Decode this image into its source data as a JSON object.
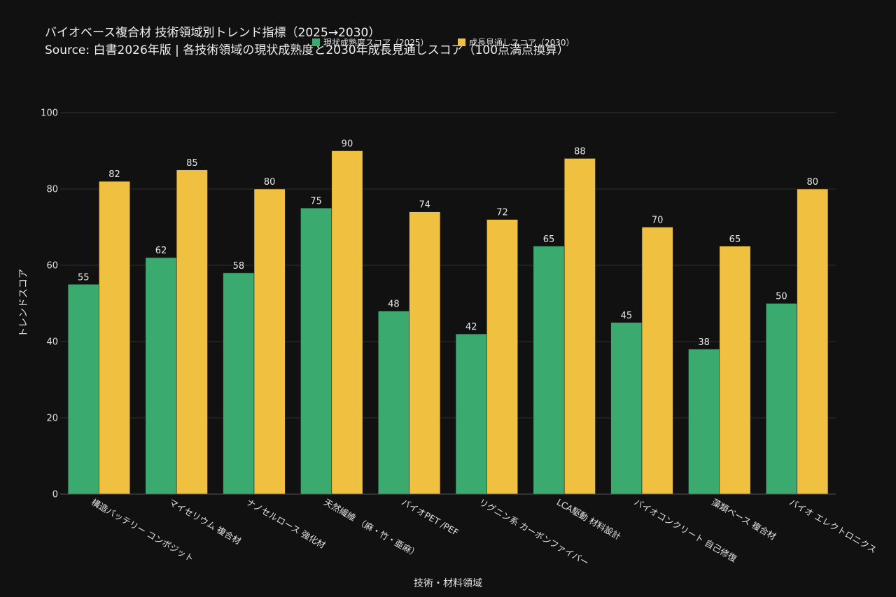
{
  "chart_data": {
    "type": "bar",
    "title": "バイオベース複合材 技術領域別トレンド指標（2025→2030）",
    "subtitle": "Source: 白書2026年版 | 各技術領域の現状成熟度と2030年成長見通しスコア（100点満点換算）",
    "xlabel": "技術・材料領域",
    "ylabel": "トレンドスコア",
    "ylim": [
      0,
      100
    ],
    "yticks": [
      0,
      20,
      40,
      60,
      80,
      100
    ],
    "grid": true,
    "legend_position": "top",
    "categories": [
      "構造バッテリー コンポジット",
      "マイセリウム 複合材",
      "ナノセルロース 強化材",
      "天然繊維 （麻・竹・亜麻）",
      "バイオPET /PEF",
      "リグニン系 カーボンファイバー",
      "LCA駆動 材料設計",
      "バイオコンクリート 自己修復",
      "藻類ベース 複合材",
      "バイオ エレクトロニクス"
    ],
    "series": [
      {
        "name": "現状成熟度スコア（2025）",
        "color": "#3aaa6e",
        "values": [
          55,
          62,
          58,
          75,
          48,
          42,
          65,
          45,
          38,
          50
        ]
      },
      {
        "name": "成長見通しスコア（2030）",
        "color": "#f0c040",
        "values": [
          82,
          85,
          80,
          90,
          74,
          72,
          88,
          70,
          65,
          80
        ]
      }
    ]
  }
}
